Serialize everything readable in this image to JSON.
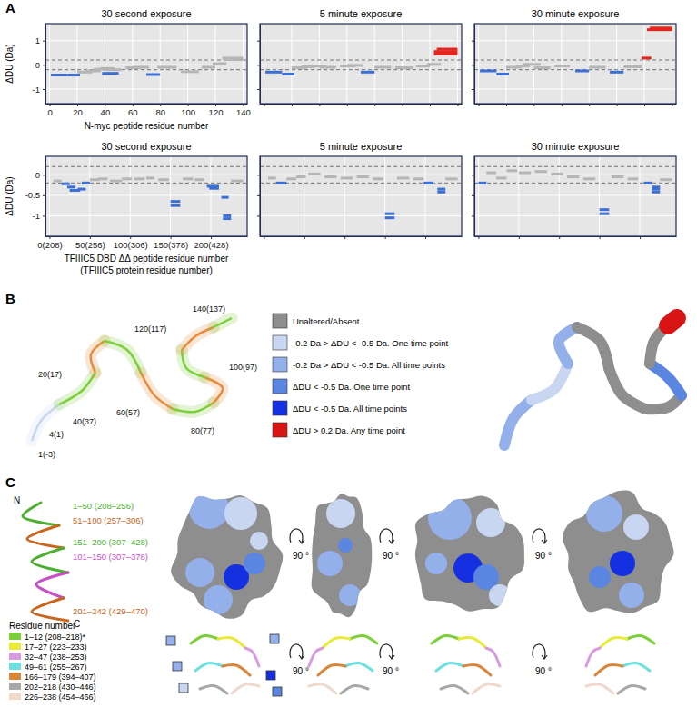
{
  "chart_data": [
    {
      "type": "range",
      "title": "30 second exposure",
      "x_label": "N-myc peptide residue number",
      "y_label": "ΔDU (Da)",
      "xlim": [
        -3,
        143
      ],
      "ylim": [
        -1.6,
        1.7
      ],
      "xticks": [
        0,
        20,
        40,
        60,
        80,
        100,
        120,
        140
      ],
      "yticks": [
        -1,
        0,
        1
      ],
      "thresholds": [
        -0.2,
        0.2
      ],
      "grid": true,
      "tick_labels": true,
      "x_start": [
        1,
        13,
        20,
        27,
        32,
        37,
        38,
        40,
        55,
        60,
        70,
        78,
        95,
        110,
        118,
        125,
        126
      ],
      "x_end": [
        13,
        22,
        31,
        37,
        41,
        47,
        50,
        52,
        66,
        72,
        80,
        92,
        108,
        120,
        128,
        140,
        140
      ],
      "values": [
        -0.42,
        -0.42,
        -0.3,
        -0.25,
        -0.18,
        -0.15,
        -0.35,
        -0.2,
        -0.12,
        -0.1,
        -0.4,
        -0.1,
        -0.28,
        -0.1,
        0.05,
        0.28,
        0.22
      ],
      "colors": [
        "#3b6fd4",
        "#3b6fd4",
        "#b5b5b5",
        "#b5b5b5",
        "#b5b5b5",
        "#b5b5b5",
        "#3b6fd4",
        "#b5b5b5",
        "#b5b5b5",
        "#b5b5b5",
        "#3b6fd4",
        "#b5b5b5",
        "#b5b5b5",
        "#b5b5b5",
        "#b5b5b5",
        "#b5b5b5",
        "#b5b5b5"
      ]
    },
    {
      "type": "range",
      "title": "5 minute exposure",
      "xlim": [
        -3,
        143
      ],
      "ylim": [
        -1.6,
        1.7
      ],
      "xticks": [
        0,
        20,
        40,
        60,
        80,
        100,
        120,
        140
      ],
      "yticks": [
        -1,
        0,
        1
      ],
      "thresholds": [
        -0.2,
        0.2
      ],
      "grid": true,
      "tick_labels": false,
      "x_start": [
        1,
        13,
        20,
        27,
        32,
        40,
        55,
        60,
        70,
        80,
        95,
        110,
        118,
        123,
        123,
        125
      ],
      "x_end": [
        13,
        22,
        31,
        37,
        45,
        52,
        66,
        72,
        80,
        92,
        108,
        120,
        128,
        140,
        140,
        140
      ],
      "values": [
        -0.3,
        -0.38,
        -0.12,
        -0.08,
        -0.05,
        -0.1,
        -0.05,
        -0.02,
        -0.3,
        -0.1,
        -0.12,
        -0.05,
        0.02,
        0.45,
        0.55,
        0.65
      ],
      "colors": [
        "#3b6fd4",
        "#3b6fd4",
        "#b5b5b5",
        "#b5b5b5",
        "#b5b5b5",
        "#b5b5b5",
        "#b5b5b5",
        "#b5b5b5",
        "#3b6fd4",
        "#b5b5b5",
        "#b5b5b5",
        "#b5b5b5",
        "#b5b5b5",
        "#e3261f",
        "#e3261f",
        "#e3261f"
      ]
    },
    {
      "type": "range",
      "title": "30 minute exposure",
      "xlim": [
        -3,
        143
      ],
      "ylim": [
        -1.6,
        1.7
      ],
      "xticks": [
        0,
        20,
        40,
        60,
        80,
        100,
        120,
        140
      ],
      "yticks": [
        -1,
        0,
        1
      ],
      "thresholds": [
        -0.2,
        0.2
      ],
      "grid": true,
      "tick_labels": false,
      "x_start": [
        1,
        13,
        20,
        27,
        32,
        40,
        55,
        70,
        80,
        95,
        105,
        118,
        122,
        124
      ],
      "x_end": [
        13,
        22,
        31,
        37,
        45,
        52,
        66,
        80,
        92,
        105,
        118,
        125,
        140,
        140
      ],
      "values": [
        -0.25,
        -0.38,
        -0.1,
        -0.05,
        0.02,
        -0.12,
        -0.05,
        -0.25,
        -0.1,
        -0.3,
        -0.08,
        0.28,
        1.45,
        1.52
      ],
      "colors": [
        "#3b6fd4",
        "#3b6fd4",
        "#b5b5b5",
        "#b5b5b5",
        "#b5b5b5",
        "#b5b5b5",
        "#b5b5b5",
        "#3b6fd4",
        "#b5b5b5",
        "#3b6fd4",
        "#b5b5b5",
        "#e3261f",
        "#e3261f",
        "#e3261f"
      ]
    },
    {
      "type": "range",
      "title": "30 second exposure",
      "x_label": [
        "TFIIIC5 DBD ΔΔ peptide residue number",
        "(TFIIIC5 protein residue number)"
      ],
      "y_label": "ΔDU (Da)",
      "xlim": [
        -5,
        245
      ],
      "ylim": [
        -1.5,
        0.45
      ],
      "xticks": [
        {
          "value": 0,
          "label": "0(208)"
        },
        {
          "value": 50,
          "label": "50(256)"
        },
        {
          "value": 100,
          "label": "100(306)"
        },
        {
          "value": 150,
          "label": "150(378)"
        },
        {
          "value": 200,
          "label": "200(428)"
        }
      ],
      "yticks": [
        -1,
        -0.5,
        0
      ],
      "thresholds": [
        -0.2,
        0.2
      ],
      "grid": true,
      "tick_labels": true,
      "x_start": [
        5,
        15,
        22,
        25,
        35,
        40,
        50,
        60,
        75,
        90,
        105,
        120,
        135,
        150,
        150,
        165,
        180,
        195,
        198,
        213,
        215,
        215,
        225
      ],
      "x_end": [
        15,
        25,
        32,
        38,
        45,
        50,
        62,
        72,
        90,
        102,
        118,
        130,
        148,
        162,
        162,
        178,
        192,
        210,
        210,
        222,
        225,
        225,
        240
      ],
      "values": [
        -0.15,
        -0.22,
        -0.3,
        -0.38,
        -0.35,
        -0.2,
        -0.12,
        -0.1,
        -0.15,
        -0.1,
        -0.1,
        -0.08,
        -0.12,
        -0.65,
        -0.75,
        -0.1,
        -0.12,
        -0.28,
        -0.33,
        -0.55,
        -1,
        -1.07,
        -0.15
      ],
      "colors": [
        "#b5b5b5",
        "#3b6fd4",
        "#3b6fd4",
        "#3b6fd4",
        "#3b6fd4",
        "#3b6fd4",
        "#b5b5b5",
        "#b5b5b5",
        "#b5b5b5",
        "#b5b5b5",
        "#b5b5b5",
        "#b5b5b5",
        "#b5b5b5",
        "#3b6fd4",
        "#3b6fd4",
        "#b5b5b5",
        "#b5b5b5",
        "#3b6fd4",
        "#3b6fd4",
        "#3b6fd4",
        "#3b6fd4",
        "#3b6fd4",
        "#b5b5b5"
      ]
    },
    {
      "type": "range",
      "title": "5 minute exposure",
      "xlim": [
        -5,
        245
      ],
      "ylim": [
        -1.5,
        0.45
      ],
      "xticks": [
        {
          "value": 0,
          "label": "0(208)"
        },
        {
          "value": 50,
          "label": "50(256)"
        },
        {
          "value": 100,
          "label": "100(306)"
        },
        {
          "value": 150,
          "label": "150(378)"
        },
        {
          "value": 200,
          "label": "200(428)"
        }
      ],
      "yticks": [
        -1,
        -0.5,
        0
      ],
      "thresholds": [
        -0.2,
        0.2
      ],
      "grid": true,
      "tick_labels": false,
      "x_start": [
        5,
        15,
        28,
        40,
        55,
        75,
        95,
        115,
        135,
        150,
        150,
        165,
        185,
        198,
        215,
        215,
        225
      ],
      "x_end": [
        15,
        28,
        40,
        52,
        70,
        90,
        110,
        130,
        148,
        162,
        162,
        180,
        198,
        210,
        225,
        225,
        240
      ],
      "values": [
        -0.08,
        -0.2,
        -0.1,
        -0.05,
        0.02,
        -0.05,
        -0.08,
        -0.05,
        -0.1,
        -0.95,
        -1.05,
        -0.08,
        -0.1,
        -0.2,
        -0.35,
        -0.42,
        -0.1
      ],
      "colors": [
        "#b5b5b5",
        "#3b6fd4",
        "#b5b5b5",
        "#b5b5b5",
        "#b5b5b5",
        "#b5b5b5",
        "#b5b5b5",
        "#b5b5b5",
        "#b5b5b5",
        "#3b6fd4",
        "#3b6fd4",
        "#b5b5b5",
        "#b5b5b5",
        "#3b6fd4",
        "#3b6fd4",
        "#3b6fd4",
        "#b5b5b5"
      ]
    },
    {
      "type": "range",
      "title": "30 minute exposure",
      "xlim": [
        -5,
        245
      ],
      "ylim": [
        -1.5,
        0.45
      ],
      "xticks": [
        {
          "value": 0,
          "label": "0(208)"
        },
        {
          "value": 50,
          "label": "50(256)"
        },
        {
          "value": 100,
          "label": "100(306)"
        },
        {
          "value": 150,
          "label": "150(378)"
        },
        {
          "value": 200,
          "label": "200(428)"
        }
      ],
      "yticks": [
        -1,
        -0.5,
        0
      ],
      "thresholds": [
        -0.2,
        0.2
      ],
      "grid": true,
      "tick_labels": false,
      "x_start": [
        0,
        10,
        22,
        35,
        50,
        70,
        90,
        110,
        130,
        150,
        150,
        165,
        185,
        205,
        215,
        215,
        215,
        225
      ],
      "x_end": [
        10,
        22,
        35,
        48,
        65,
        85,
        105,
        125,
        145,
        162,
        162,
        180,
        198,
        215,
        225,
        225,
        225,
        240
      ],
      "values": [
        -0.2,
        0.05,
        -0.08,
        0.1,
        0.05,
        0.08,
        0.02,
        -0.05,
        -0.1,
        -0.85,
        -0.95,
        -0.05,
        -0.1,
        -0.2,
        -0.3,
        -0.35,
        -0.42,
        -0.12
      ],
      "colors": [
        "#3b6fd4",
        "#b5b5b5",
        "#b5b5b5",
        "#b5b5b5",
        "#b5b5b5",
        "#b5b5b5",
        "#b5b5b5",
        "#b5b5b5",
        "#b5b5b5",
        "#3b6fd4",
        "#3b6fd4",
        "#b5b5b5",
        "#b5b5b5",
        "#3b6fd4",
        "#3b6fd4",
        "#3b6fd4",
        "#3b6fd4",
        "#b5b5b5"
      ]
    }
  ],
  "panel_labels": [
    "A",
    "B",
    "C"
  ],
  "panel_b": {
    "residue_labels": [
      "140(137)",
      "20(17)",
      "120(117)",
      "100(97)",
      "4(1)",
      "1(-3)",
      "40(37)",
      "60(57)",
      "80(77)"
    ],
    "key_items": [
      {
        "label": "Unaltered/Absent",
        "color": "#8e8e8e"
      },
      {
        "label": "-0.2 Da > ΔDU < -0.5 Da. One time point",
        "color": "#c9d6f2"
      },
      {
        "label": "-0.2 Da > ΔDU < -0.5 Da. All time points",
        "color": "#93b0ea"
      },
      {
        "label": "ΔDU < -0.5 Da. One time point",
        "color": "#5a86e2"
      },
      {
        "label": "ΔDU < -0.5 Da. All time points",
        "color": "#1530e0"
      },
      {
        "label": "ΔDU > 0.2 Da. Any time point",
        "color": "#d81414"
      }
    ]
  },
  "panel_c": {
    "region_labels": [
      {
        "text": "1–50 (208–256)",
        "color": "#4caf32"
      },
      {
        "text": "51–100 (257–306)",
        "color": "#c8661e"
      },
      {
        "text": "151–200 (307–428)",
        "color": "#4caf32"
      },
      {
        "text": "101–150 (307–378)",
        "color": "#c651c6"
      },
      {
        "text": "201–242 (429–470)",
        "color": "#c8661e"
      }
    ],
    "termini": [
      "N",
      "C"
    ],
    "rotation": "90 °",
    "legend_title": "Residue number",
    "legend_items": [
      {
        "label": "1–12 (208–218)*",
        "color": "#7ccf3a"
      },
      {
        "label": "17–27 (223–233)",
        "color": "#eaea3a"
      },
      {
        "label": "32–47 (238–253)",
        "color": "#d79be0"
      },
      {
        "label": "49–61 (255–267)",
        "color": "#6fe0e0"
      },
      {
        "label": "166–179 (394–407)",
        "color": "#d9853a"
      },
      {
        "label": "202–218 (430–446)",
        "color": "#a8a8a8"
      },
      {
        "label": "226–238 (454–466)",
        "color": "#efd9cc"
      }
    ]
  }
}
